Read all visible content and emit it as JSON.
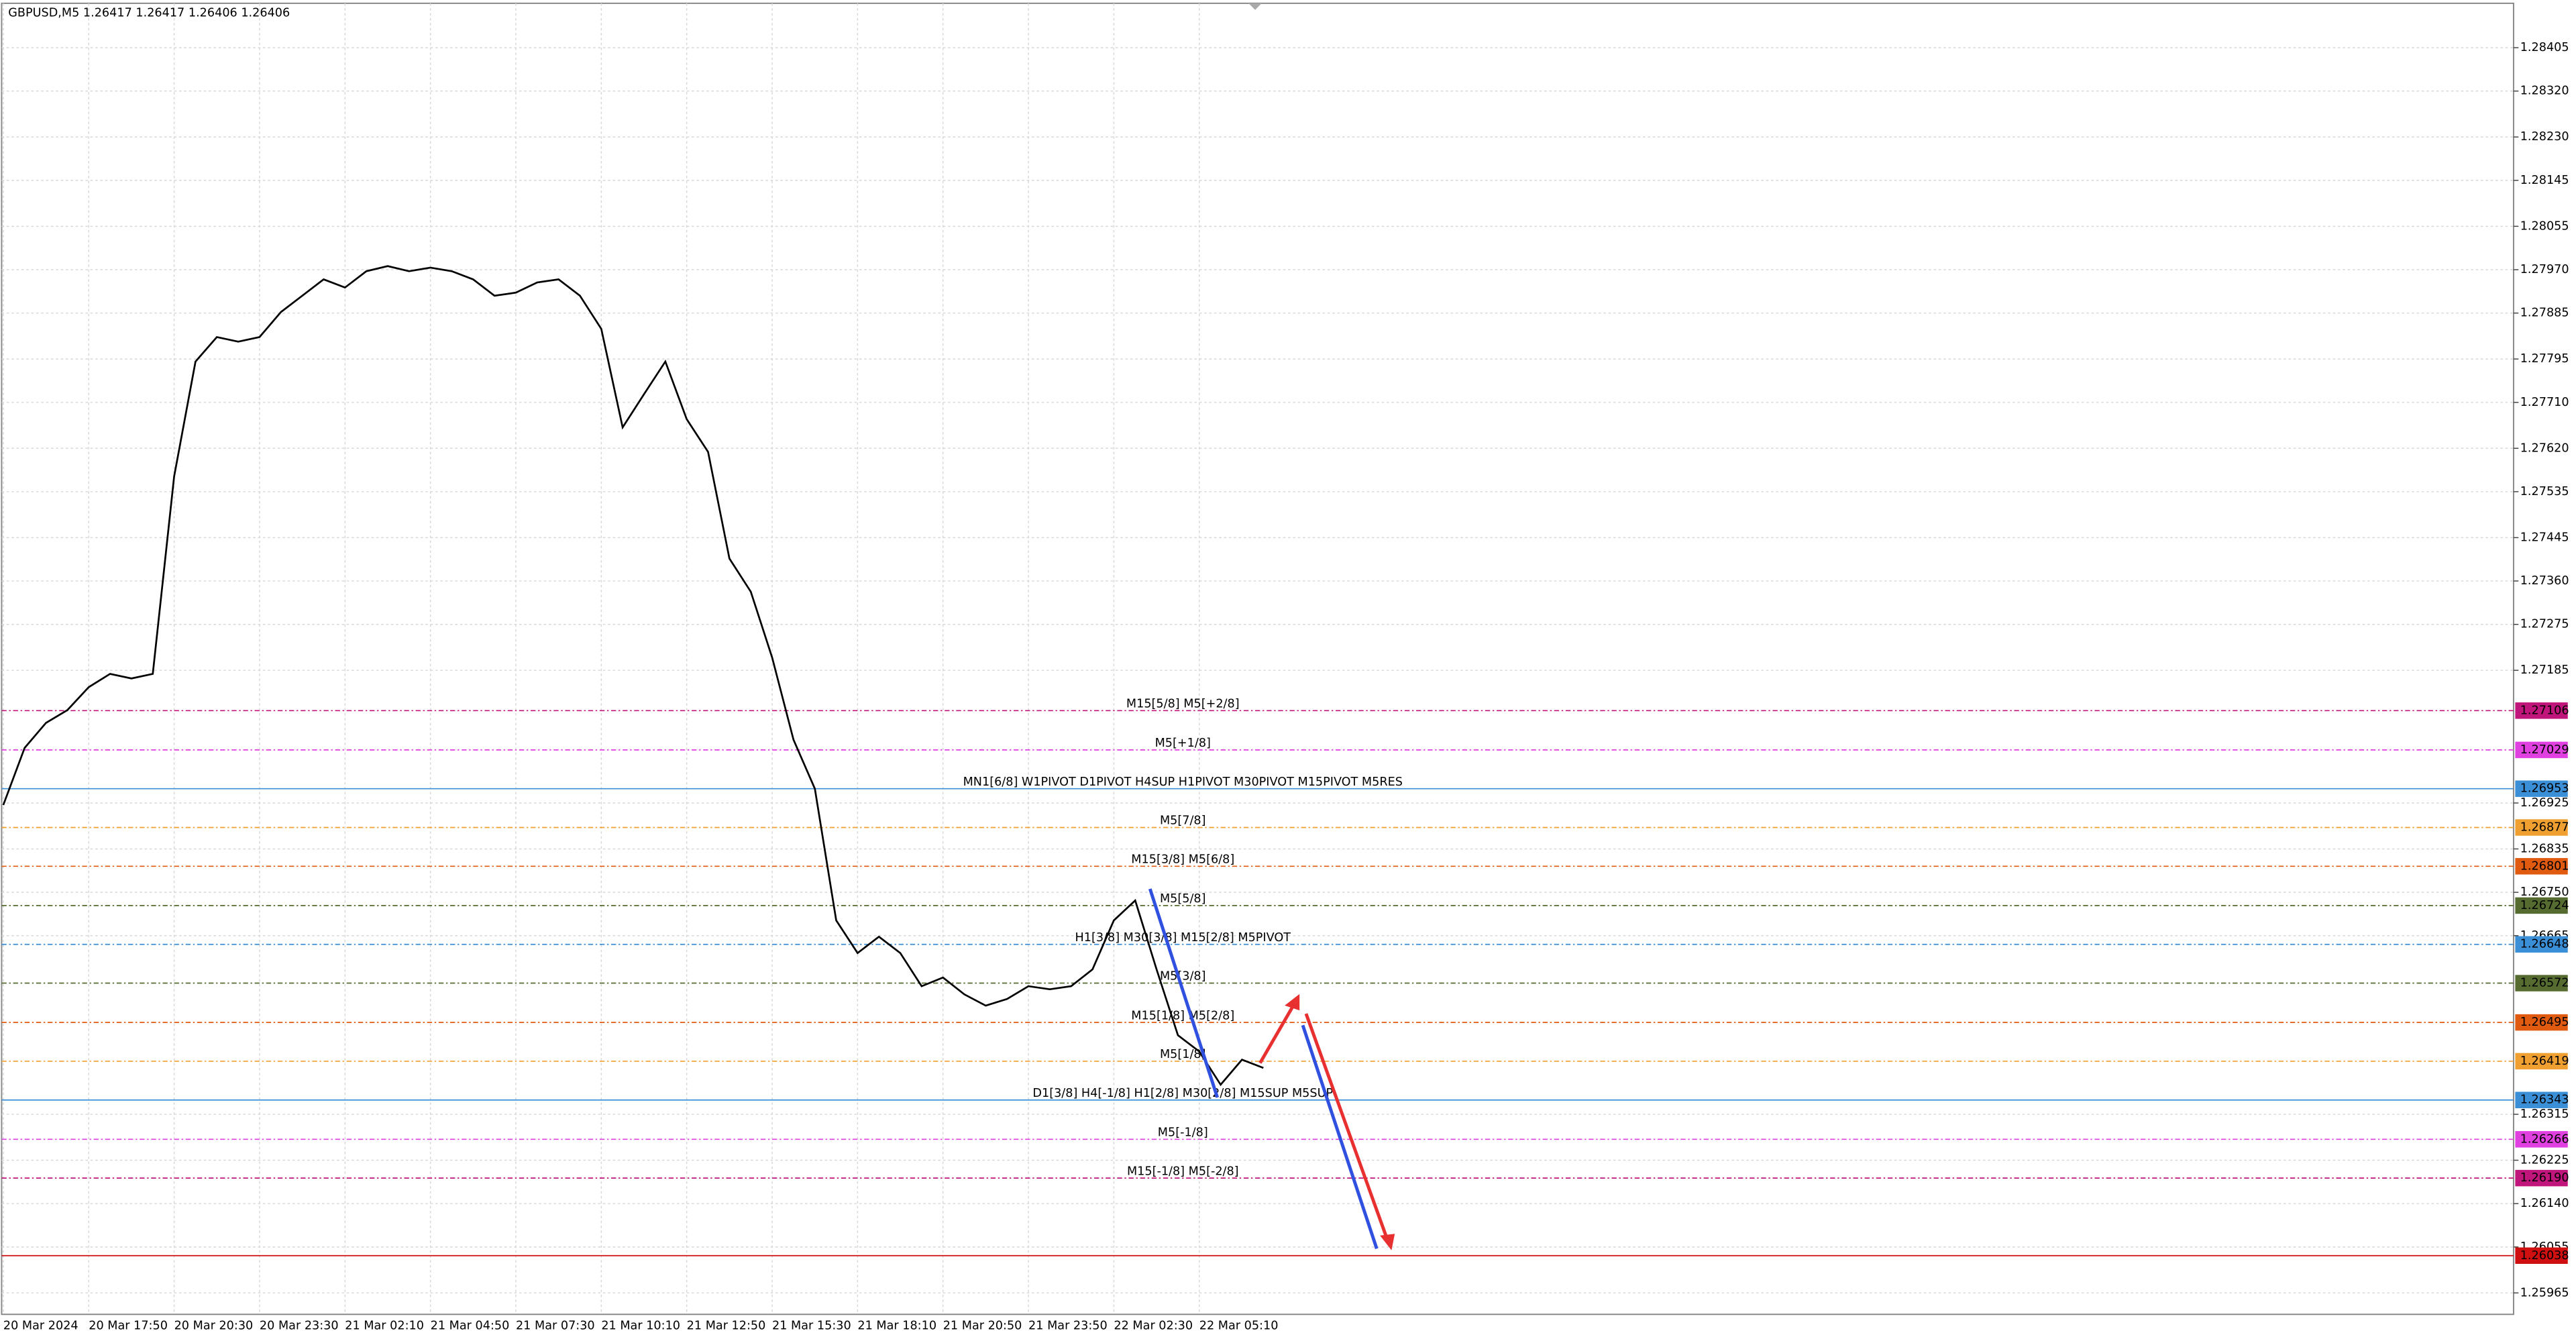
{
  "chart_data": {
    "type": "line",
    "title": "GBPUSD,M5  1.26417 1.26417 1.26406 1.26406",
    "categories": [
      "20 Mar 2024",
      null,
      null,
      null,
      "20 Mar 17:50",
      null,
      null,
      null,
      "20 Mar 20:30",
      null,
      null,
      null,
      "20 Mar 23:30",
      null,
      null,
      null,
      "21 Mar 02:10",
      null,
      null,
      null,
      "21 Mar 04:50",
      null,
      null,
      null,
      "21 Mar 07:30",
      null,
      null,
      null,
      "21 Mar 10:10",
      null,
      null,
      null,
      "21 Mar 12:50",
      null,
      null,
      null,
      "21 Mar 15:30",
      null,
      null,
      null,
      "21 Mar 18:10",
      null,
      null,
      null,
      "21 Mar 20:50",
      null,
      null,
      null,
      "21 Mar 23:50",
      null,
      null,
      null,
      "22 Mar 02:30",
      null,
      null,
      null,
      "22 Mar 05:10",
      null,
      null,
      null
    ],
    "series": [
      {
        "name": "GBPUSD",
        "color": "#000000",
        "values": [
          1.26921,
          1.27033,
          1.27082,
          1.27107,
          1.27152,
          1.27178,
          1.27169,
          1.27178,
          1.27565,
          1.2779,
          1.27838,
          1.27829,
          1.27838,
          1.27887,
          1.27919,
          1.27951,
          1.27935,
          1.27967,
          1.27977,
          1.27967,
          1.27974,
          1.27967,
          1.27951,
          1.27919,
          1.27925,
          1.27945,
          1.27951,
          1.27919,
          1.27854,
          1.27661,
          1.27726,
          1.2779,
          1.27677,
          1.27613,
          1.27404,
          1.27339,
          1.2721,
          1.27049,
          1.26953,
          1.26695,
          1.26631,
          1.26663,
          1.26631,
          1.26566,
          1.26583,
          1.2655,
          1.26528,
          1.26541,
          1.26566,
          1.2656,
          1.26566,
          1.26599,
          1.26695,
          1.26734,
          1.26599,
          1.2647,
          1.26438,
          1.26373,
          1.26422,
          1.26406
        ]
      }
    ],
    "ylim": [
      1.25923,
      1.28492
    ],
    "yticks": [
      1.28405,
      {
        "value": 1.2832,
        "label": "1.28320"
      },
      {
        "value": 1.2823,
        "label": "1.28230"
      },
      1.28145,
      1.28055,
      {
        "value": 1.2797,
        "label": "1.27970"
      },
      1.27885,
      1.27795,
      {
        "value": 1.2771,
        "label": "1.27710"
      },
      {
        "value": 1.2762,
        "label": "1.27620"
      },
      1.27535,
      1.27445,
      {
        "value": 1.2736,
        "label": "1.27360"
      },
      1.27275,
      1.27185,
      1.26925,
      1.26835,
      {
        "value": 1.2675,
        "label": "1.26750"
      },
      1.26665,
      1.26315,
      1.26225,
      {
        "value": 1.2614,
        "label": "1.26140"
      },
      1.26055,
      1.25965
    ],
    "grid": true,
    "levels": [
      {
        "label": "M15[5/8] M5[+2/8]",
        "price": 1.27106,
        "color": "#c0157a"
      },
      {
        "label": "M5[+1/8]",
        "price": 1.27029,
        "color": "#e040e0"
      },
      {
        "label": "MN1[6/8] W1PIVOT D1PIVOT H4SUP H1PIVOT M30PIVOT M15PIVOT M5RES",
        "price": 1.26953,
        "color": "#3a8fd6",
        "solid": true
      },
      {
        "label": "M5[7/8]",
        "price": 1.26877,
        "color": "#f0a030"
      },
      {
        "label": "M15[3/8] M5[6/8]",
        "price": 1.26801,
        "color": "#e05a10"
      },
      {
        "label": "M5[5/8]",
        "price": 1.26724,
        "color": "#556b2f"
      },
      {
        "label": "H1[3/8] M30[3/8] M15[2/8] M5PIVOT",
        "price": 1.26648,
        "color": "#3a8fd6"
      },
      {
        "label": "M5[3/8]",
        "price": 1.26572,
        "color": "#556b2f"
      },
      {
        "label": "M15[1/8] M5[2/8]",
        "price": 1.26495,
        "color": "#e05a10"
      },
      {
        "label": "M5[1/8]",
        "price": 1.26419,
        "color": "#f0a030"
      },
      {
        "label": "D1[3/8] H4[-1/8] H1[2/8] M30[2/8] M15SUP M5SUP",
        "price": 1.26343,
        "color": "#3a8fd6",
        "solid": true
      },
      {
        "label": "M5[-1/8]",
        "price": 1.26266,
        "color": "#e040e0"
      },
      {
        "label": "M15[-1/8] M5[-2/8]",
        "price": {
          "value": 1.2619,
          "label": "1.26190"
        },
        "color": "#c0157a"
      },
      {
        "price": 1.26038,
        "color": "#d01010",
        "solid": true
      }
    ]
  }
}
